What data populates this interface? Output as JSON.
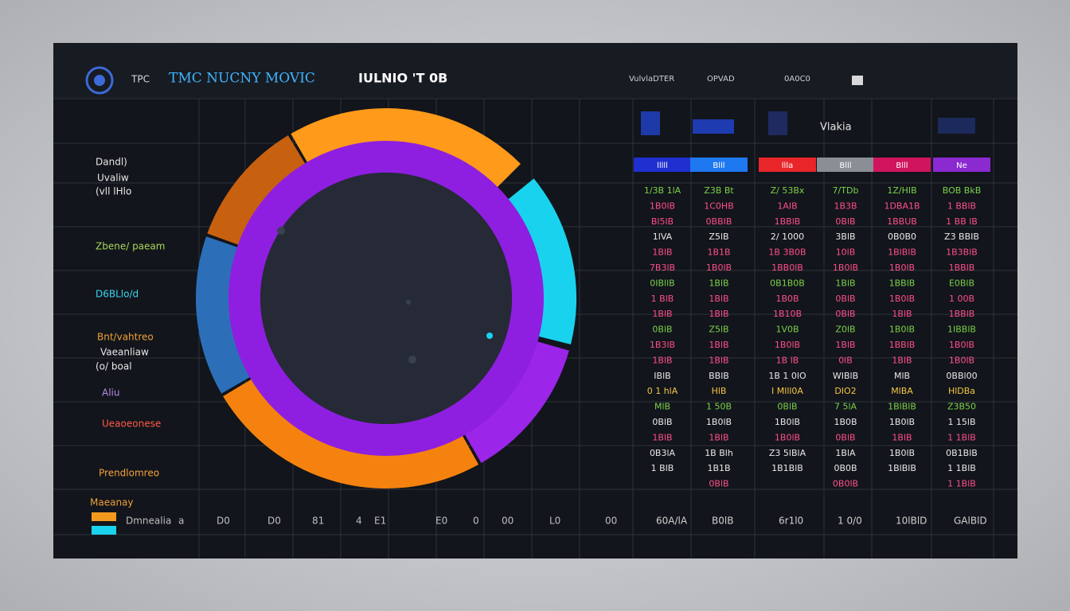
{
  "header": {
    "logo_text": "TPC",
    "title": "TMC NUCNY MOVIC",
    "subtitle": "IULNIO 'T 0B",
    "nav": [
      "VulvlaDTER",
      "OPVAD",
      "0A0C0"
    ]
  },
  "side_labels": [
    {
      "text": "Dandl)",
      "color": "#e8e8e8"
    },
    {
      "text": "Uvaliw",
      "color": "#e8e8e8"
    },
    {
      "text": "(vll lHlo",
      "color": "#e8e8e8"
    },
    {
      "text": "Zbene/ paeam",
      "color": "#a6d65a"
    },
    {
      "text": "D6BLlo/d",
      "color": "#38d6f0"
    },
    {
      "text": "Bnt/vahtreo",
      "color": "#f0a13a"
    },
    {
      "text": "Vaeanliaw",
      "color": "#e8e8e8"
    },
    {
      "text": "(o/ boal",
      "color": "#e8e8e8"
    },
    {
      "text": "Aliu",
      "color": "#b58be8"
    },
    {
      "text": "Ueaoeonese",
      "color": "#ff5a4a"
    },
    {
      "text": "Prendlomreo",
      "color": "#f5a23c"
    }
  ],
  "legend": {
    "title": "Maeanay",
    "swatches": [
      "#f39a1e",
      "#19d3ee"
    ]
  },
  "table": {
    "top_label": "Vlakia",
    "headers": [
      {
        "label": "lllll",
        "color": "#1f2fd0"
      },
      {
        "label": "Blll",
        "color": "#1e78f0"
      },
      {
        "label": "llla",
        "color": "#e8262a"
      },
      {
        "label": "Blll",
        "color": "#8a8f96"
      },
      {
        "label": "Blll",
        "color": "#d0155e"
      },
      {
        "label": "Ne",
        "color": "#8a2ad0"
      }
    ],
    "rows": [
      {
        "color": "#7bd148",
        "cells": [
          "1/3B 1lA",
          "Z3B Bt",
          "Z/ 53Bx",
          "7/TDb",
          "1Z/HIB",
          "BOB BkB"
        ]
      },
      {
        "color": "#ff4f8a",
        "cells": [
          "1B0lB",
          "1C0HB",
          "1AIB",
          "1B3B",
          "1DBA1B",
          "1 BBlB"
        ]
      },
      {
        "color": "#ff4f8a",
        "cells": [
          "Bl5lB",
          "0BBIB",
          "1BBlB",
          "0BlB",
          "1BBUB",
          "1 BB lB"
        ]
      },
      {
        "color": "#e8e8e8",
        "cells": [
          "1lVA",
          "Z5lB",
          "2/ 1000",
          "3BlB",
          "0B0B0",
          "Z3 BBIB"
        ]
      },
      {
        "color": "#ff4f8a",
        "cells": [
          "1BlB",
          "1B1B",
          "1B 3B0B",
          "10lB",
          "1BlBlB",
          "1B3BlB"
        ]
      },
      {
        "color": "#ff4f8a",
        "cells": [
          "7B3lB",
          "1B0lB",
          "1BB0lB",
          "1B0lB",
          "1B0lB",
          "1BBlB"
        ]
      },
      {
        "color": "#7bd148",
        "cells": [
          "0IBllB",
          "1BlB",
          "0B1B0B",
          "1BlB",
          "1BBlB",
          "E0BlB"
        ]
      },
      {
        "color": "#ff4f8a",
        "cells": [
          "1 BlB",
          "1BlB",
          "1B0B",
          "0BlB",
          "1B0lB",
          "1 00B"
        ]
      },
      {
        "color": "#ff4f8a",
        "cells": [
          "1BlB",
          "1BlB",
          "1B10B",
          "0BlB",
          "1BlB",
          "1BBlB"
        ]
      },
      {
        "color": "#7bd148",
        "cells": [
          "0BlB",
          "Z5lB",
          "1V0B",
          "Z0lB",
          "1B0lB",
          "1IBBlB"
        ]
      },
      {
        "color": "#ff4f8a",
        "cells": [
          "1B3lB",
          "1BlB",
          "1B0lB",
          "1BlB",
          "1BBlB",
          "1B0lB"
        ]
      },
      {
        "color": "#ff4f8a",
        "cells": [
          "1BlB",
          "1BlB",
          "1B lB",
          "0lB",
          "1BlB",
          "1B0lB"
        ]
      },
      {
        "color": "#e8e8e8",
        "cells": [
          "IBlB",
          "BBlB",
          "1B 1 0lO",
          "WIBlB",
          "MlB",
          "0BBl00"
        ]
      },
      {
        "color": "#f5c542",
        "cells": [
          "0 1 hlA",
          "HlB",
          "I Mlll0A",
          "DIO2",
          "MlBA",
          "HlDBa"
        ]
      },
      {
        "color": "#7bd148",
        "cells": [
          "MlB",
          "1 50B",
          "0BlB",
          "7 5lA",
          "1BlBlB",
          "Z3B50"
        ]
      },
      {
        "color": "#e8e8e8",
        "cells": [
          "0BlB",
          "1B0lB",
          "1B0lB",
          "1B0B",
          "1B0lB",
          "1 15lB"
        ]
      },
      {
        "color": "#ff4f8a",
        "cells": [
          "1BlB",
          "1BlB",
          "1B0lB",
          "0BlB",
          "1BlB",
          "1 1BlB"
        ]
      },
      {
        "color": "#e8e8e8",
        "cells": [
          "0B3lA",
          "1B Blh",
          "Z3 5lBlA",
          "1BlA",
          "1B0lB",
          "0B1BlB"
        ]
      },
      {
        "color": "#e8e8e8",
        "cells": [
          "1 BlB",
          "1B1B",
          "1B1BlB",
          "0B0B",
          "1BlBlB",
          "1 1BlB"
        ]
      },
      {
        "color": "#ff4f8a",
        "cells": [
          "",
          "0BlB",
          "",
          "0B0lB",
          "",
          "1 1BlB"
        ]
      }
    ]
  },
  "footer": {
    "cells": [
      "Dmnealia",
      "a",
      "D0",
      "D0",
      "81",
      "4",
      "E1",
      "E0",
      "0",
      "00",
      "L0",
      "00",
      "60A/lA",
      "B0lB",
      "6r1l0",
      "1 0/0",
      "10lBlD",
      "GAlBlD"
    ]
  }
}
